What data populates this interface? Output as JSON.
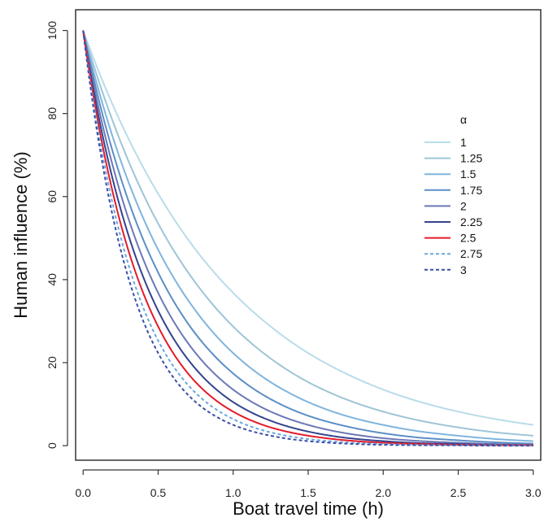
{
  "chart_data": {
    "type": "line",
    "title": "",
    "xlabel": "Boat travel time (h)",
    "ylabel": "Human influence (%)",
    "xlim": [
      -0.05,
      3.05
    ],
    "ylim": [
      -3.5,
      105
    ],
    "xticks": [
      "0.0",
      "0.5",
      "1.0",
      "1.5",
      "2.0",
      "2.5",
      "3.0"
    ],
    "yticks": [
      "0",
      "20",
      "40",
      "60",
      "80",
      "100"
    ],
    "grid": false,
    "legend": {
      "title": "α",
      "placement": "right"
    },
    "x": [
      0,
      0.25,
      0.5,
      0.75,
      1.0,
      1.25,
      1.5,
      1.75,
      2.0,
      2.25,
      2.5,
      2.75,
      3.0
    ],
    "series": [
      {
        "name": "1",
        "color": "#b9dcea",
        "dashed": false,
        "values": [
          100,
          77.9,
          60.7,
          47.2,
          36.8,
          28.7,
          22.3,
          17.4,
          13.5,
          10.5,
          8.2,
          6.4,
          5.0
        ]
      },
      {
        "name": "1.25",
        "color": "#9ec5d6",
        "dashed": false,
        "values": [
          100,
          73.2,
          53.5,
          39.2,
          28.7,
          21.0,
          15.3,
          11.2,
          8.2,
          6.0,
          4.4,
          3.2,
          2.4
        ]
      },
      {
        "name": "1.5",
        "color": "#7fb5dd",
        "dashed": false,
        "values": [
          100,
          68.7,
          47.2,
          32.5,
          22.3,
          15.3,
          10.5,
          7.2,
          5.0,
          3.4,
          2.4,
          1.6,
          1.1
        ]
      },
      {
        "name": "1.75",
        "color": "#5b8fc6",
        "dashed": false,
        "values": [
          100,
          64.6,
          41.7,
          26.9,
          17.4,
          11.2,
          7.2,
          4.7,
          3.0,
          1.9,
          1.3,
          0.8,
          0.5
        ]
      },
      {
        "name": "2",
        "color": "#6c78b8",
        "dashed": false,
        "values": [
          100,
          60.7,
          36.8,
          22.3,
          13.5,
          8.2,
          5.0,
          3.0,
          1.8,
          1.1,
          0.7,
          0.4,
          0.2
        ]
      },
      {
        "name": "2.25",
        "color": "#34448e",
        "dashed": false,
        "values": [
          100,
          57.0,
          32.5,
          18.5,
          10.5,
          6.0,
          3.4,
          1.9,
          1.1,
          0.6,
          0.4,
          0.2,
          0.1
        ]
      },
      {
        "name": "2.5",
        "color": "#e41b2a",
        "dashed": false,
        "values": [
          100,
          53.5,
          28.7,
          15.3,
          8.2,
          4.4,
          2.4,
          1.3,
          0.7,
          0.4,
          0.2,
          0.1,
          0.1
        ]
      },
      {
        "name": "2.75",
        "color": "#6aa8dc",
        "dashed": true,
        "values": [
          100,
          50.3,
          25.3,
          12.7,
          6.4,
          3.2,
          1.6,
          0.8,
          0.4,
          0.2,
          0.1,
          0.1,
          0.0
        ]
      },
      {
        "name": "3",
        "color": "#3b4ea8",
        "dashed": true,
        "values": [
          100,
          47.2,
          22.3,
          10.5,
          5.0,
          2.4,
          1.1,
          0.5,
          0.2,
          0.1,
          0.1,
          0.0,
          0.0
        ]
      }
    ]
  }
}
